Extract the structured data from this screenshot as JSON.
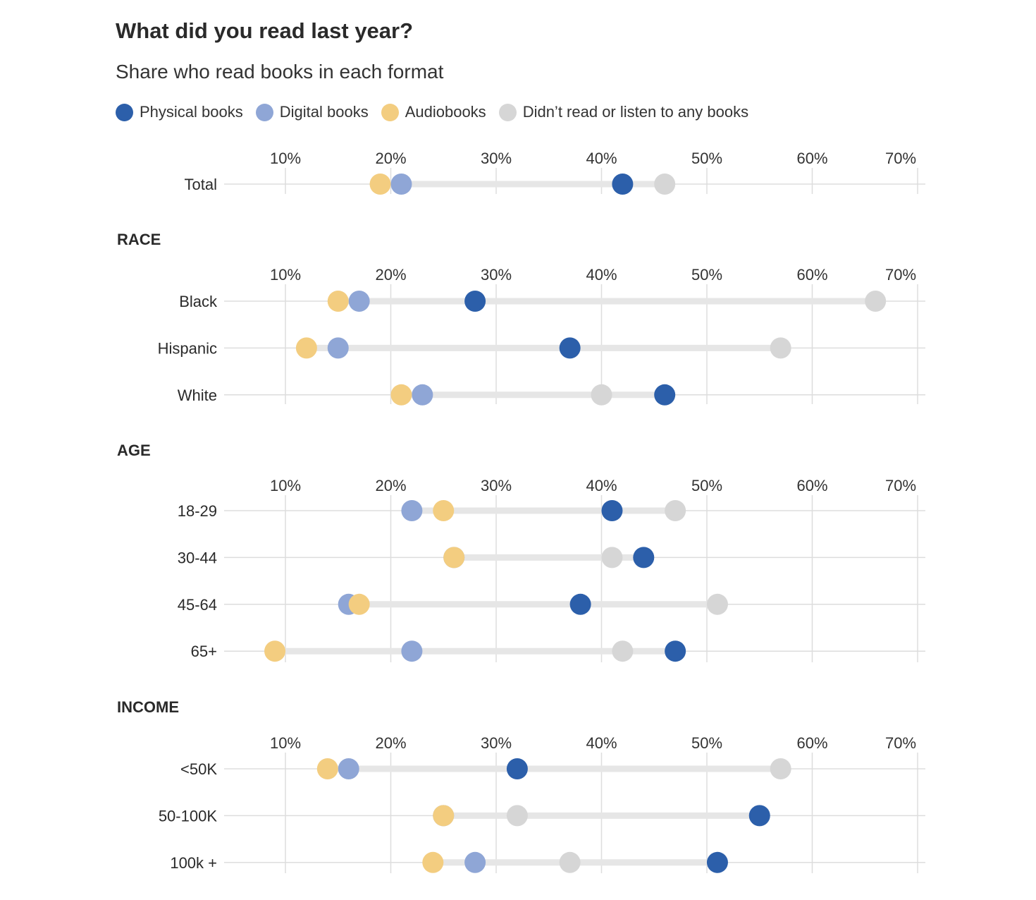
{
  "title": "What did you read last year?",
  "subtitle": "Share who read books in each format",
  "colors": {
    "physical": "#2c5faa",
    "digital": "#8fa6d6",
    "audio": "#f3cd80",
    "none": "#d6d6d6"
  },
  "legend": [
    {
      "key": "physical",
      "label": "Physical books"
    },
    {
      "key": "digital",
      "label": "Digital books"
    },
    {
      "key": "audio",
      "label": "Audiobooks"
    },
    {
      "key": "none",
      "label": "Didn’t read or listen to any books"
    }
  ],
  "chart_data": {
    "type": "dot-plot",
    "title": "What did you read last year?",
    "subtitle": "Share who read books in each format",
    "xlim": [
      4,
      71
    ],
    "x_ticks": [
      10,
      20,
      30,
      40,
      50,
      60,
      70
    ],
    "x_tick_labels": [
      "10%",
      "20%",
      "30%",
      "40%",
      "50%",
      "60%",
      "70%"
    ],
    "series": [
      "physical",
      "digital",
      "audio",
      "none"
    ],
    "groups": [
      {
        "heading": "",
        "rows": [
          {
            "label": "Total",
            "physical": 42,
            "digital": 21,
            "audio": 19,
            "none": 46
          }
        ]
      },
      {
        "heading": "RACE",
        "rows": [
          {
            "label": "Black",
            "physical": 28,
            "digital": 17,
            "audio": 15,
            "none": 66
          },
          {
            "label": "Hispanic",
            "physical": 37,
            "digital": 15,
            "audio": 12,
            "none": 57
          },
          {
            "label": "White",
            "physical": 46,
            "digital": 23,
            "audio": 21,
            "none": 40
          }
        ]
      },
      {
        "heading": "AGE",
        "rows": [
          {
            "label": "18-29",
            "physical": 41,
            "digital": 22,
            "audio": 25,
            "none": 47
          },
          {
            "label": "30-44",
            "physical": 44,
            "digital": 26,
            "audio": 26,
            "none": 41
          },
          {
            "label": "45-64",
            "physical": 38,
            "digital": 16,
            "audio": 17,
            "none": 51
          },
          {
            "label": "65+",
            "physical": 47,
            "digital": 22,
            "audio": 9,
            "none": 42
          }
        ]
      },
      {
        "heading": "INCOME",
        "rows": [
          {
            "label": "<50K",
            "physical": 32,
            "digital": 16,
            "audio": 14,
            "none": 57
          },
          {
            "label": "50-100K",
            "physical": 55,
            "digital": 25,
            "audio": 25,
            "none": 32
          },
          {
            "label": "100k +",
            "physical": 51,
            "digital": 28,
            "audio": 24,
            "none": 37
          }
        ]
      }
    ]
  }
}
